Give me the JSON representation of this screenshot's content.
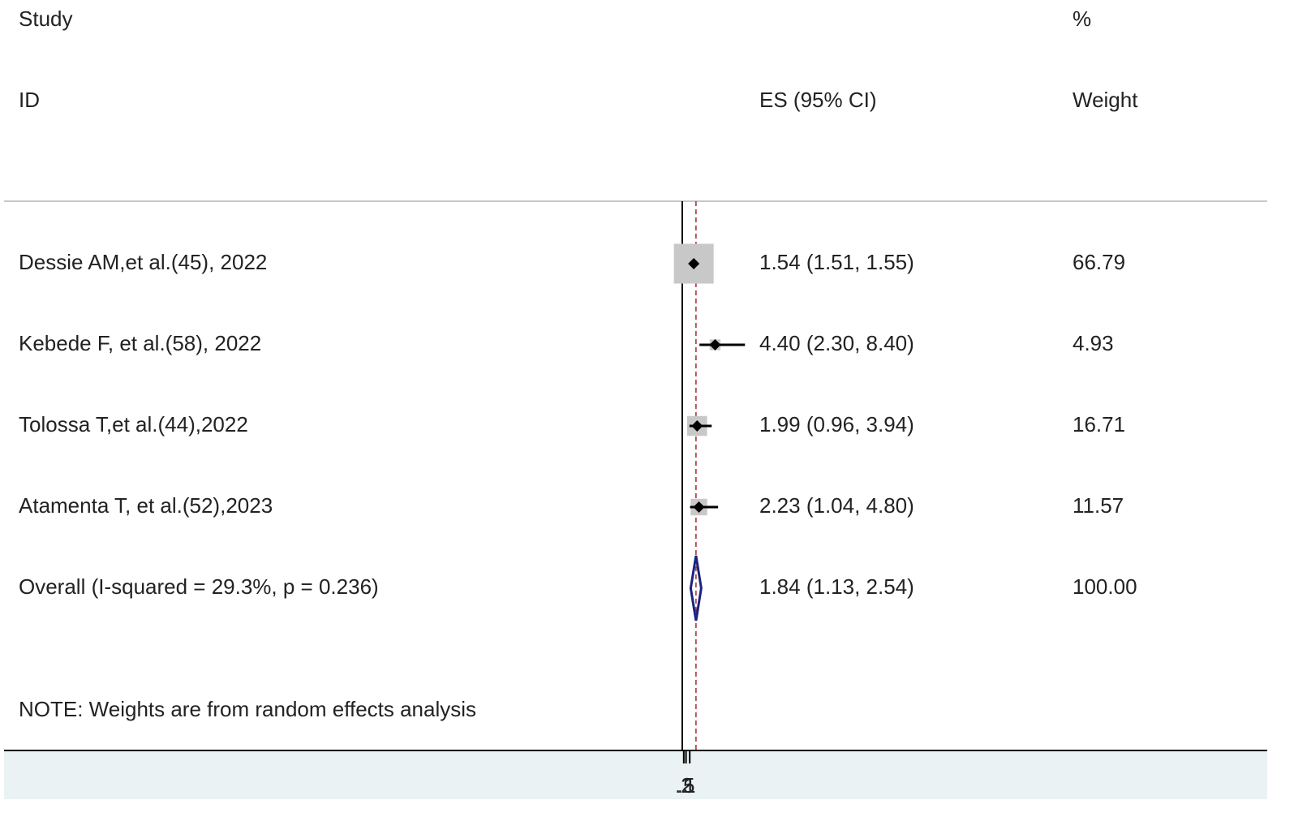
{
  "chart_data": {
    "type": "forest",
    "header_study": "Study",
    "header_id": "ID",
    "header_es": "ES (95% CI)",
    "header_pct": "%",
    "header_weight": "Weight",
    "categories": [
      "Dessie AM,et al.(45), 2022",
      "Kebede F, et al.(58), 2022",
      "Tolossa T,et al.(44),2022",
      "Atamenta T, et al.(52),2023"
    ],
    "es": [
      1.54,
      4.4,
      1.99,
      2.23
    ],
    "lower": [
      1.51,
      2.3,
      0.96,
      1.04
    ],
    "upper": [
      1.55,
      8.4,
      3.94,
      4.8
    ],
    "ci_labels": [
      "1.54 (1.51, 1.55)",
      "4.40 (2.30, 8.40)",
      "1.99 (0.96, 3.94)",
      "2.23 (1.04, 4.80)"
    ],
    "weights": [
      66.79,
      4.93,
      16.71,
      11.57
    ],
    "overall": {
      "label": "Overall  (I-squared = 29.3%, p = 0.236)",
      "es": 1.84,
      "lower": 1.13,
      "upper": 2.54,
      "ci_label": "1.84 (1.13, 2.54)",
      "weight": 100,
      "weight_label": "100.00"
    },
    "note": "NOTE: Weights are from random effects analysis",
    "xlim": [
      -90.9,
      78.4
    ],
    "xticks": [
      {
        "value": 0.2,
        "label": ".2"
      },
      {
        "value": 0.5,
        "label": ".5"
      },
      1
    ],
    "null_line": 0,
    "box_color": "#c8c8c8",
    "ci_color": "#000000",
    "diamond_color": "#1a237e",
    "overall_line_color": "#a0282d",
    "axis_fill": "#eaf2f3"
  }
}
